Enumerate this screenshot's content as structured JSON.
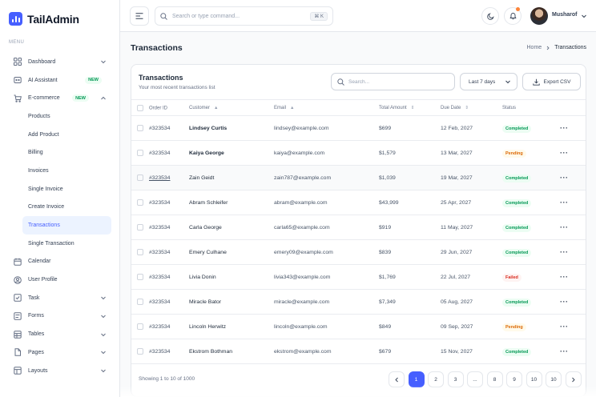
{
  "brand": {
    "name": "TailAdmin"
  },
  "sidebar": {
    "menu_label": "MENU",
    "items_top": [
      {
        "label": "Dashboard",
        "icon": "grid-icon",
        "chevron": "down"
      },
      {
        "label": "AI Assistant",
        "icon": "ai-icon",
        "badge": "NEW"
      },
      {
        "label": "E-commerce",
        "icon": "cart-icon",
        "badge": "NEW",
        "chevron": "up"
      }
    ],
    "sub_items": [
      {
        "label": "Products"
      },
      {
        "label": "Add Product"
      },
      {
        "label": "Billing"
      },
      {
        "label": "Invoices"
      },
      {
        "label": "Single Invoice"
      },
      {
        "label": "Create Invoice"
      },
      {
        "label": "Transactions",
        "active": true
      },
      {
        "label": "Single Transaction"
      }
    ],
    "items_bottom": [
      {
        "label": "Calendar",
        "icon": "calendar-icon"
      },
      {
        "label": "User Profile",
        "icon": "user-circle-icon"
      },
      {
        "label": "Task",
        "icon": "task-icon",
        "chevron": "down"
      },
      {
        "label": "Forms",
        "icon": "form-icon",
        "chevron": "down"
      },
      {
        "label": "Tables",
        "icon": "table-icon",
        "chevron": "down"
      },
      {
        "label": "Pages",
        "icon": "page-icon",
        "chevron": "down"
      },
      {
        "label": "Layouts",
        "icon": "layout-icon",
        "chevron": "down"
      }
    ]
  },
  "header": {
    "search_placeholder": "Search or type command...",
    "shortcut": "⌘ K",
    "user_name": "Musharof"
  },
  "page": {
    "title": "Transactions",
    "breadcrumb": {
      "home": "Home",
      "current": "Transactions"
    }
  },
  "card": {
    "title": "Transactions",
    "subtitle": "Your most recent transactions list",
    "search_placeholder": "Search...",
    "period": "Last 7 days",
    "export_label": "Export CSV"
  },
  "table": {
    "columns": [
      "Order ID",
      "Customer",
      "Email",
      "Total Amount",
      "Due Date",
      "Status"
    ],
    "rows": [
      {
        "id": "#323534",
        "customer": "Lindsey Curtis",
        "email": "lindsey@example.com",
        "amount": "$699",
        "due": "12 Feb, 2027",
        "status": "Completed"
      },
      {
        "id": "#323534",
        "customer": "Kaiya George",
        "email": "kaiya@example.com",
        "amount": "$1,579",
        "due": "13 Mar, 2027",
        "status": "Pending"
      },
      {
        "id": "#323534",
        "customer": "Zain Geidt",
        "email": "zain787@example.com",
        "amount": "$1,039",
        "due": "19 Mar, 2027",
        "status": "Completed"
      },
      {
        "id": "#323534",
        "customer": "Abram Schleifer",
        "email": "abram@example.com",
        "amount": "$43,999",
        "due": "25 Apr, 2027",
        "status": "Completed"
      },
      {
        "id": "#323534",
        "customer": "Carla George",
        "email": "carla65@example.com",
        "amount": "$919",
        "due": "11 May, 2027",
        "status": "Completed"
      },
      {
        "id": "#323534",
        "customer": "Emery Culhane",
        "email": "emery09@example.com",
        "amount": "$839",
        "due": "29 Jun, 2027",
        "status": "Completed"
      },
      {
        "id": "#323534",
        "customer": "Livia Donin",
        "email": "livia343@example.com",
        "amount": "$1,769",
        "due": "22 Jul, 2027",
        "status": "Failed"
      },
      {
        "id": "#323534",
        "customer": "Miracle Bator",
        "email": "miracle@example.com",
        "amount": "$7,349",
        "due": "05 Aug, 2027",
        "status": "Completed"
      },
      {
        "id": "#323534",
        "customer": "Lincoln Herwitz",
        "email": "lincoln@example.com",
        "amount": "$849",
        "due": "09 Sep, 2027",
        "status": "Pending"
      },
      {
        "id": "#323534",
        "customer": "Ekstrom Bothman",
        "email": "ekstrom@example.com",
        "amount": "$679",
        "due": "15 Nov, 2027",
        "status": "Completed"
      }
    ]
  },
  "footer": {
    "showing": "Showing 1 to 10 of 1000",
    "pages": [
      "1",
      "2",
      "3",
      "...",
      "8",
      "9",
      "10",
      "10"
    ],
    "active_page": "1"
  }
}
